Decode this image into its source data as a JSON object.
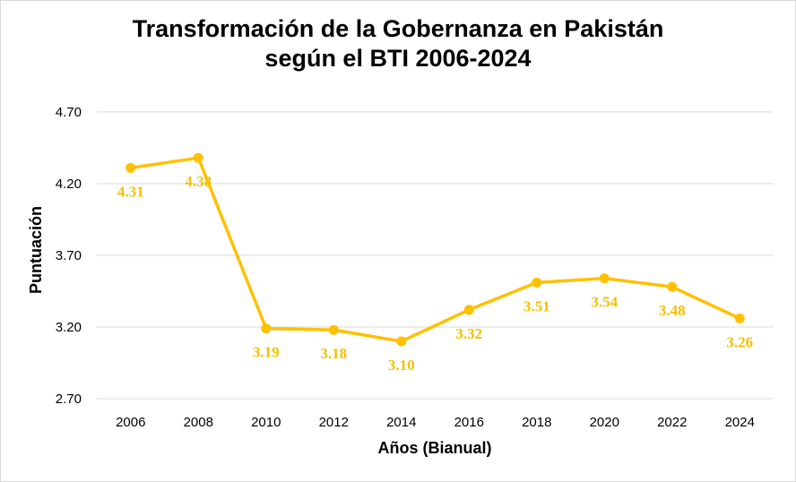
{
  "chart_data": {
    "type": "line",
    "title_line1": "Transformación de la Gobernanza en Pakistán",
    "title_line2": "según el BTI 2006-2024",
    "xlabel": "Años (Bianual)",
    "ylabel": "Puntuación",
    "categories": [
      "2006",
      "2008",
      "2010",
      "2012",
      "2014",
      "2016",
      "2018",
      "2020",
      "2022",
      "2024"
    ],
    "series": [
      {
        "values": [
          4.31,
          4.38,
          3.19,
          3.18,
          3.1,
          3.32,
          3.51,
          3.54,
          3.48,
          3.26
        ],
        "labels": [
          "4.31",
          "4.38",
          "3.19",
          "3.18",
          "3.10",
          "3.32",
          "3.51",
          "3.54",
          "3.48",
          "3.26"
        ]
      }
    ],
    "y_ticks": [
      "2.70",
      "3.20",
      "3.70",
      "4.20",
      "4.70"
    ],
    "ylim": [
      2.7,
      4.7
    ],
    "grid": true,
    "legend": "none",
    "colors": {
      "line": "#ffc000",
      "label": "#f5c000",
      "grid": "#d9d9d9"
    }
  }
}
